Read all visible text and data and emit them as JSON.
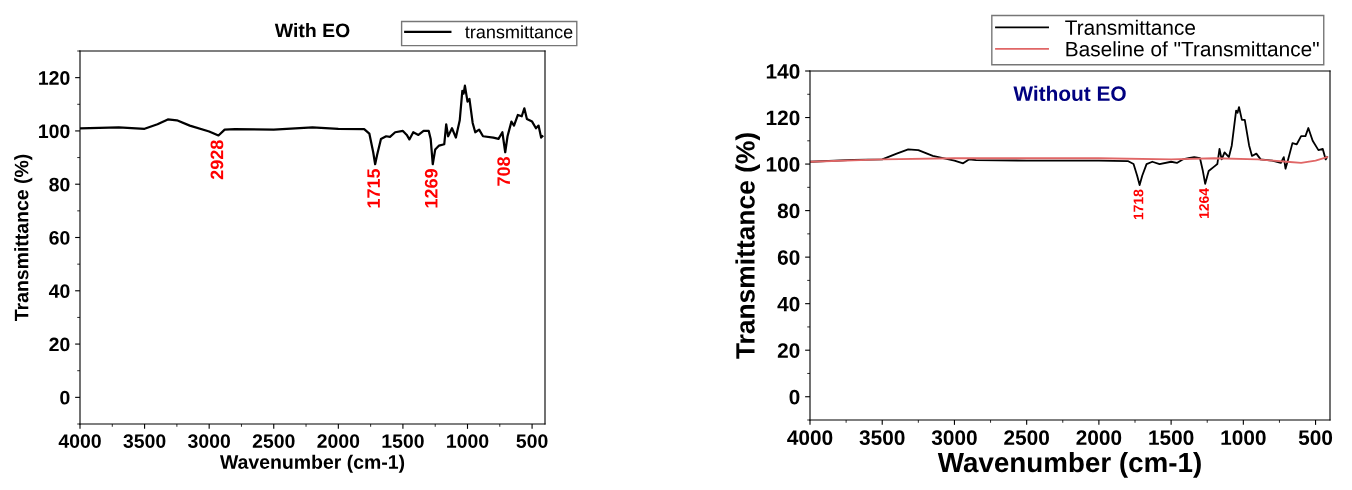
{
  "chart_data": [
    {
      "type": "line",
      "title": "With EO",
      "xlabel": "Wavenumber (cm-1)",
      "ylabel": "Transmittance (%)",
      "xlim": [
        4000,
        400
      ],
      "xticks": [
        4000,
        3500,
        3000,
        2500,
        2000,
        1500,
        1000,
        500
      ],
      "ylim": [
        -10,
        130
      ],
      "yticks": [
        0,
        20,
        40,
        60,
        80,
        100,
        120
      ],
      "legend": "top right",
      "grid": false,
      "annotations": [
        {
          "text": "2928",
          "x": 2928,
          "y": 98.3
        },
        {
          "text": "1715",
          "x": 1715,
          "y": 87.5
        },
        {
          "text": "1269",
          "x": 1269,
          "y": 87.5
        },
        {
          "text": "708",
          "x": 708,
          "y": 92
        }
      ],
      "series": [
        {
          "name": "transmittance",
          "color": "#000000",
          "x": [
            4000,
            3700,
            3500,
            3400,
            3320,
            3250,
            3150,
            3000,
            2928,
            2880,
            2800,
            2500,
            2200,
            2000,
            1800,
            1760,
            1730,
            1715,
            1700,
            1670,
            1630,
            1600,
            1560,
            1500,
            1470,
            1450,
            1420,
            1380,
            1340,
            1300,
            1285,
            1269,
            1250,
            1220,
            1180,
            1165,
            1150,
            1120,
            1090,
            1060,
            1040,
            1030,
            1020,
            1000,
            985,
            960,
            940,
            910,
            880,
            800,
            760,
            730,
            708,
            690,
            660,
            640,
            610,
            580,
            560,
            540,
            500,
            470,
            450,
            430,
            420
          ],
          "values": [
            101,
            101.3,
            100.8,
            102.5,
            104.3,
            104,
            102,
            99.8,
            98.3,
            100.5,
            100.7,
            100.5,
            101.3,
            100.8,
            100.7,
            99,
            92,
            87.5,
            91,
            97,
            98,
            97.8,
            99.5,
            100,
            98.5,
            96.8,
            99.5,
            98.5,
            100,
            100,
            97,
            87.5,
            93,
            94.5,
            95,
            102.5,
            98,
            101,
            97.5,
            104,
            115,
            114,
            117,
            111,
            112,
            103,
            99.5,
            100.5,
            98,
            97.5,
            97,
            99.5,
            92,
            98,
            103.5,
            102,
            106,
            105.5,
            108.5,
            104.5,
            103.5,
            101,
            102,
            97.5,
            98
          ]
        }
      ]
    },
    {
      "type": "line",
      "xlabel": "Wavenumber (cm-1)",
      "ylabel": "Transmittance (%)",
      "xlim": [
        4000,
        400
      ],
      "xticks": [
        4000,
        3500,
        3000,
        2500,
        2000,
        1500,
        1000,
        500
      ],
      "ylim": [
        -10,
        140
      ],
      "yticks": [
        0,
        20,
        40,
        60,
        80,
        100,
        120,
        140
      ],
      "legend": "top right",
      "grid": false,
      "annotations": [
        "Without EO",
        {
          "text": "1718",
          "x": 1718,
          "y": 91
        },
        {
          "text": "1264",
          "x": 1264,
          "y": 91.5
        }
      ],
      "series": [
        {
          "name": "Transmittance",
          "color": "#000000",
          "x": [
            4000,
            3700,
            3500,
            3400,
            3320,
            3250,
            3150,
            3000,
            2940,
            2900,
            2850,
            2500,
            2000,
            1800,
            1760,
            1735,
            1718,
            1700,
            1670,
            1630,
            1580,
            1500,
            1460,
            1420,
            1380,
            1340,
            1300,
            1280,
            1264,
            1240,
            1200,
            1180,
            1165,
            1150,
            1130,
            1100,
            1080,
            1050,
            1040,
            1030,
            1010,
            990,
            960,
            940,
            910,
            880,
            800,
            740,
            720,
            708,
            690,
            660,
            630,
            600,
            570,
            550,
            520,
            480,
            450,
            430,
            420
          ],
          "values": [
            101,
            101.8,
            102,
            104.5,
            106.3,
            106,
            103.5,
            101.5,
            100.3,
            102,
            101.7,
            101.5,
            101.5,
            101.3,
            100,
            95,
            91,
            95,
            100,
            101,
            100,
            101,
            100.5,
            102,
            102.5,
            103,
            102.5,
            97,
            91.5,
            97,
            99,
            100,
            106.5,
            102,
            105,
            103,
            108,
            123,
            122,
            124.5,
            119,
            119,
            108,
            103.5,
            104.5,
            102,
            101.5,
            100.5,
            103,
            98,
            102,
            109,
            108.5,
            112,
            112,
            115.5,
            110,
            106,
            106.5,
            102,
            103
          ]
        },
        {
          "name": "Baseline of \"Transmittance\"",
          "color": "#e06666",
          "x": [
            4000,
            3500,
            3000,
            2500,
            2000,
            1500,
            1200,
            900,
            700,
            600,
            500,
            420
          ],
          "values": [
            101,
            102,
            102.5,
            102.5,
            102.5,
            102,
            102.5,
            102,
            101,
            100.5,
            101.5,
            103
          ]
        }
      ]
    }
  ]
}
